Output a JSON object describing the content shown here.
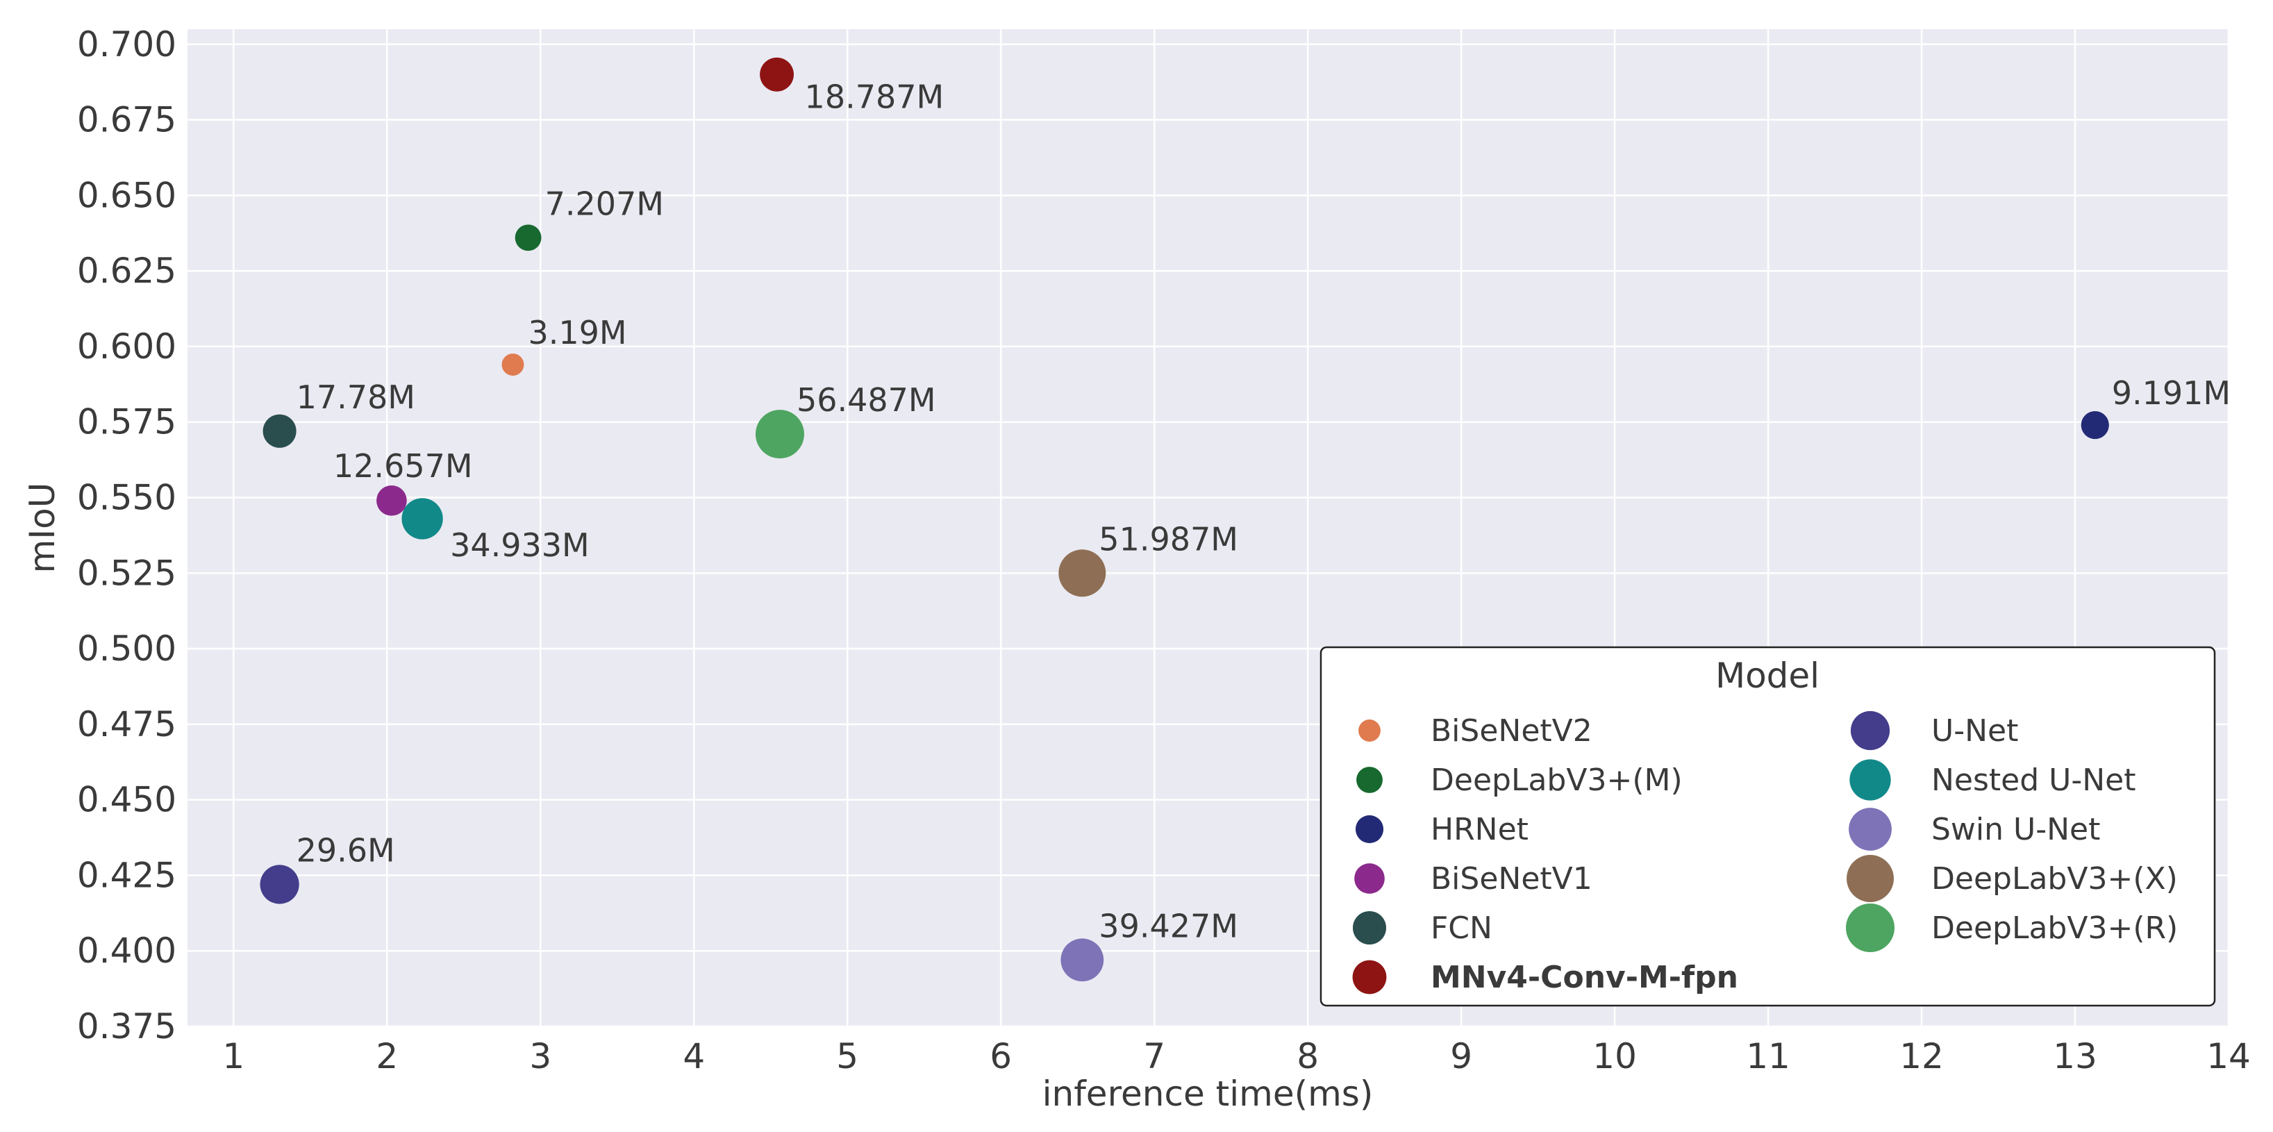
{
  "chart_data": {
    "type": "scatter",
    "xlabel": "inference time(ms)",
    "ylabel": "mIoU",
    "xlim": [
      0.7,
      14.0
    ],
    "ylim": [
      0.375,
      0.705
    ],
    "xticks": [
      1,
      2,
      3,
      4,
      5,
      6,
      7,
      8,
      9,
      10,
      11,
      12,
      13,
      14
    ],
    "yticks": [
      0.375,
      0.4,
      0.425,
      0.45,
      0.475,
      0.5,
      0.525,
      0.55,
      0.575,
      0.6,
      0.625,
      0.65,
      0.675,
      0.7
    ],
    "xtick_labels": [
      "1",
      "2",
      "3",
      "4",
      "5",
      "6",
      "7",
      "8",
      "9",
      "10",
      "11",
      "12",
      "13",
      "14"
    ],
    "ytick_labels": [
      "0.375",
      "0.400",
      "0.425",
      "0.450",
      "0.475",
      "0.500",
      "0.525",
      "0.550",
      "0.575",
      "0.600",
      "0.625",
      "0.650",
      "0.675",
      "0.700"
    ],
    "grid": true,
    "legend_title": "Model",
    "legend_position": "bottom-right",
    "series": [
      {
        "name": "BiSeNetV2",
        "x": 2.82,
        "y": 0.594,
        "params": "3.19M",
        "params_m": 3.19,
        "color": "#E07B4F",
        "bold": false
      },
      {
        "name": "DeepLabV3+(M)",
        "x": 2.92,
        "y": 0.636,
        "params": "7.207M",
        "params_m": 7.207,
        "color": "#17692F",
        "bold": false
      },
      {
        "name": "HRNet",
        "x": 13.13,
        "y": 0.574,
        "params": "9.191M",
        "params_m": 9.191,
        "color": "#232A75",
        "bold": false
      },
      {
        "name": "BiSeNetV1",
        "x": 2.03,
        "y": 0.549,
        "params": "12.657M",
        "params_m": 12.657,
        "color": "#8B2A8C",
        "bold": false
      },
      {
        "name": "FCN",
        "x": 1.3,
        "y": 0.572,
        "params": "17.78M",
        "params_m": 17.78,
        "color": "#2A4D4E",
        "bold": false
      },
      {
        "name": "MNv4-Conv-M-fpn",
        "x": 4.54,
        "y": 0.69,
        "params": "18.787M",
        "params_m": 18.787,
        "color": "#8E1414",
        "bold": true
      },
      {
        "name": "U-Net",
        "x": 1.3,
        "y": 0.422,
        "params": "29.6M",
        "params_m": 29.6,
        "color": "#433D8B",
        "bold": false
      },
      {
        "name": "Nested U-Net",
        "x": 2.23,
        "y": 0.543,
        "params": "34.933M",
        "params_m": 34.933,
        "color": "#128989",
        "bold": false
      },
      {
        "name": "Swin U-Net",
        "x": 6.53,
        "y": 0.397,
        "params": "39.427M",
        "params_m": 39.427,
        "color": "#7E73B7",
        "bold": false
      },
      {
        "name": "DeepLabV3+(X)",
        "x": 6.53,
        "y": 0.525,
        "params": "51.987M",
        "params_m": 51.987,
        "color": "#8E6F55",
        "bold": false
      },
      {
        "name": "DeepLabV3+(R)",
        "x": 4.56,
        "y": 0.571,
        "params": "56.487M",
        "params_m": 56.487,
        "color": "#4EA561",
        "bold": false
      }
    ]
  }
}
